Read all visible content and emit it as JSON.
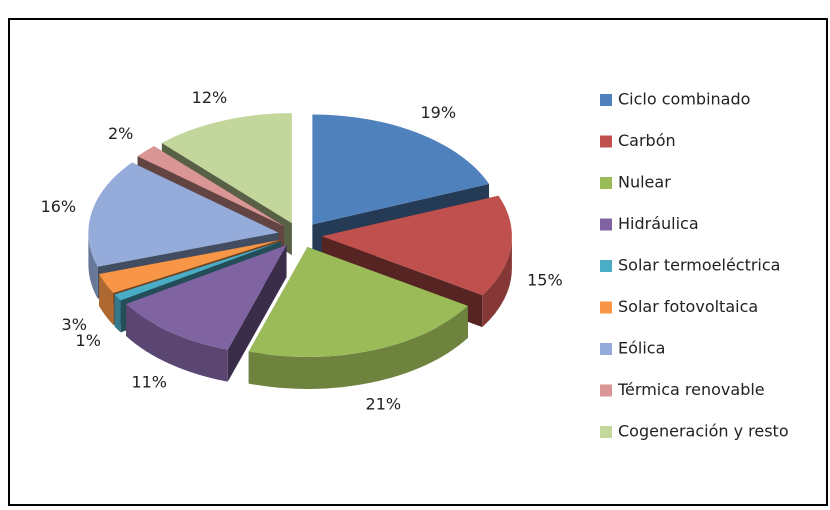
{
  "chart_data": {
    "type": "pie3d",
    "categories": [
      "Ciclo combinado",
      "Carbón",
      "Nulear",
      "Hidráulica",
      "Solar termoeléctrica",
      "Solar fotovoltaica",
      "Eólica",
      "Térmica renovable",
      "Cogeneración y resto"
    ],
    "values": [
      19,
      15,
      21,
      11,
      1,
      3,
      16,
      2,
      12
    ],
    "value_labels": [
      "19%",
      "15%",
      "21%",
      "11%",
      "1%",
      "3%",
      "16%",
      "2%",
      "12%"
    ],
    "colors": [
      "#4f81bd",
      "#c0504d",
      "#9bbb59",
      "#8064a2",
      "#4bacc6",
      "#f79646",
      "#95abd9",
      "#d99694",
      "#c3d69b"
    ],
    "legend": "right"
  }
}
